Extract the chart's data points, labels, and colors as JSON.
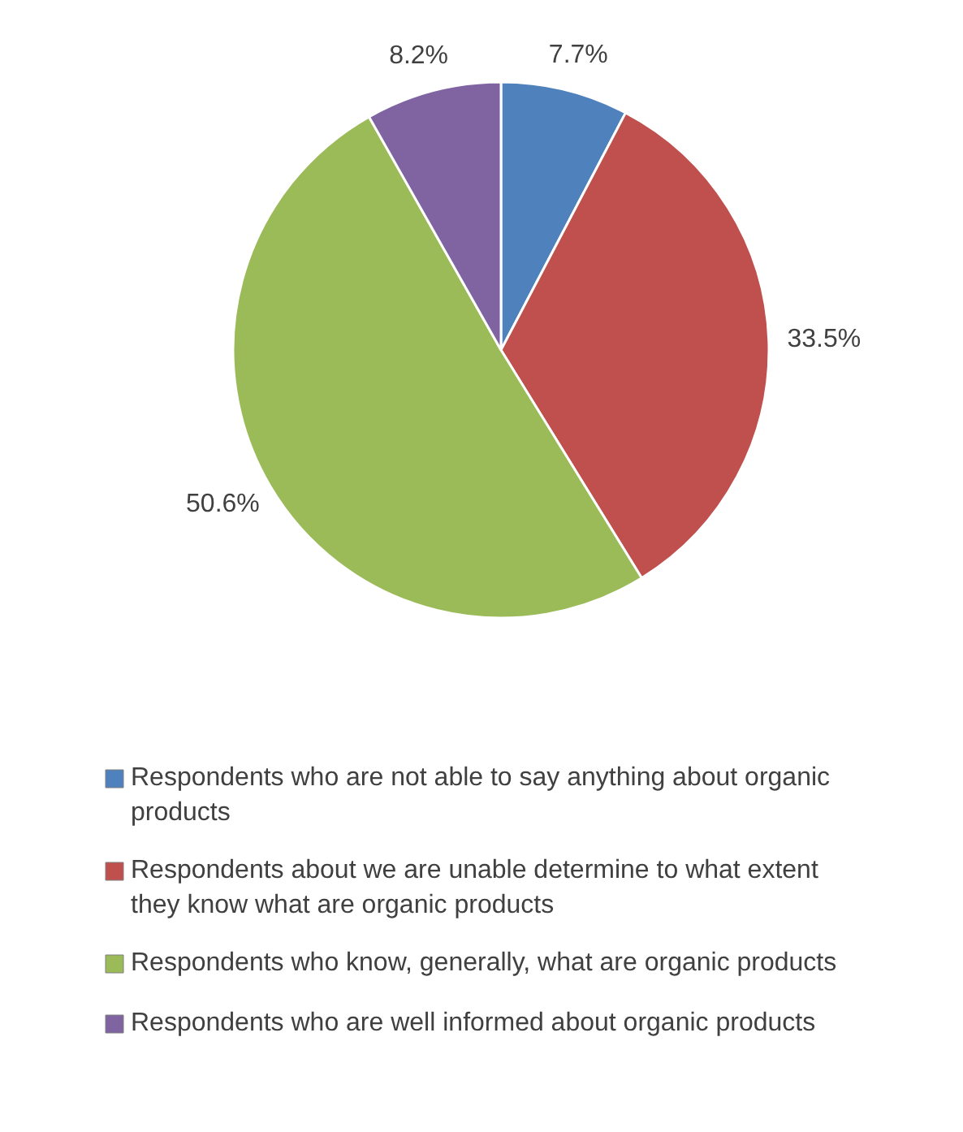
{
  "chart_data": {
    "type": "pie",
    "categories": [
      "Respondents who are not able to say anything about organic products",
      "Respondents about we are unable determine to what extent they know what are organic products",
      "Respondents who know, generally, what are organic products",
      "Respondents who are well informed about organic products"
    ],
    "values": [
      7.7,
      33.5,
      50.6,
      8.2
    ],
    "value_labels": [
      "7.7%",
      "33.5%",
      "50.6%",
      "8.2%"
    ],
    "colors": [
      "#4f81bd",
      "#c0504d",
      "#9bbb59",
      "#8064a2"
    ],
    "legend": "bottom"
  }
}
